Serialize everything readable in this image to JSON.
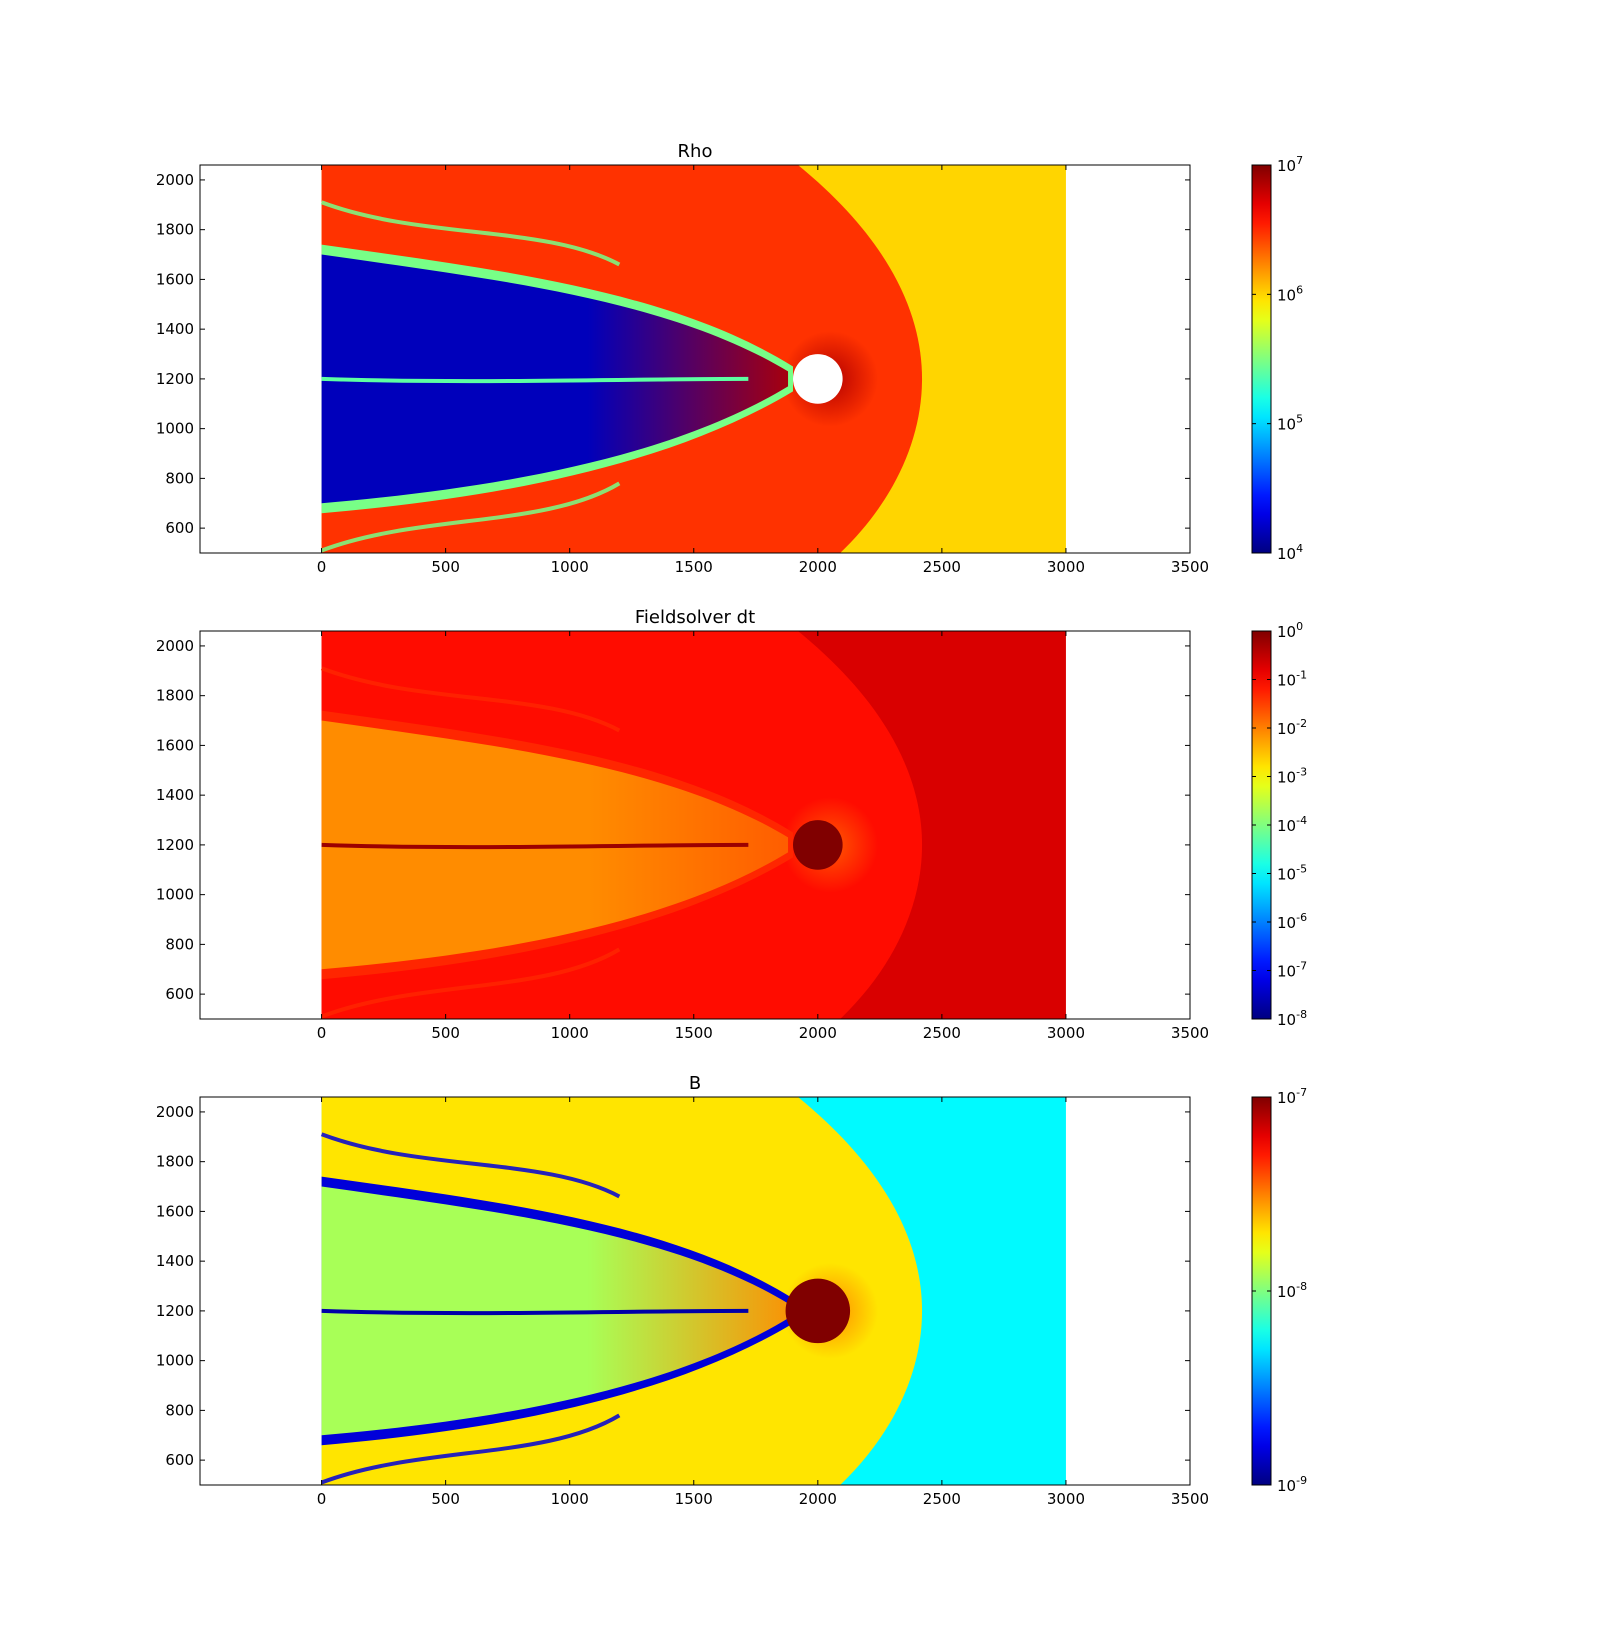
{
  "chart_data": [
    {
      "type": "heatmap",
      "title": "Rho",
      "xlabel": "",
      "ylabel": "",
      "xlim": [
        -490,
        3500
      ],
      "ylim": [
        500,
        2060
      ],
      "xticks": [
        "0",
        "500",
        "1000",
        "1500",
        "2000",
        "2500",
        "3000",
        "3500"
      ],
      "yticks": [
        "600",
        "800",
        "1000",
        "1200",
        "1400",
        "1600",
        "1800",
        "2000"
      ],
      "colorbar": {
        "scale": "log",
        "range": [
          10000,
          10000000
        ],
        "ticks": [
          {
            "base": "10",
            "exp": "4"
          },
          {
            "base": "10",
            "exp": "5"
          },
          {
            "base": "10",
            "exp": "6"
          },
          {
            "base": "10",
            "exp": "7"
          }
        ]
      },
      "data_extent": {
        "x": [
          0,
          3000
        ],
        "y": [
          500,
          2060
        ]
      },
      "obstacle": {
        "center": [
          2000,
          1200
        ],
        "radius": 100
      },
      "field": {
        "upstream": 1000000,
        "sheath": 3000000,
        "tail_lobe": 15000,
        "lobe_edge": 300000,
        "current_sheet": 250000,
        "dense_blob": 7000000,
        "obstacle_fill": "#ffffff"
      }
    },
    {
      "type": "heatmap",
      "title": "Fieldsolver dt",
      "xlabel": "",
      "ylabel": "",
      "xlim": [
        -490,
        3500
      ],
      "ylim": [
        500,
        2060
      ],
      "xticks": [
        "0",
        "500",
        "1000",
        "1500",
        "2000",
        "2500",
        "3000",
        "3500"
      ],
      "yticks": [
        "600",
        "800",
        "1000",
        "1200",
        "1400",
        "1600",
        "1800",
        "2000"
      ],
      "colorbar": {
        "scale": "log",
        "range": [
          1e-08,
          1
        ],
        "ticks": [
          {
            "base": "10",
            "exp": "-8"
          },
          {
            "base": "10",
            "exp": "-7"
          },
          {
            "base": "10",
            "exp": "-6"
          },
          {
            "base": "10",
            "exp": "-5"
          },
          {
            "base": "10",
            "exp": "-4"
          },
          {
            "base": "10",
            "exp": "-3"
          },
          {
            "base": "10",
            "exp": "-2"
          },
          {
            "base": "10",
            "exp": "-1"
          },
          {
            "base": "10",
            "exp": "0"
          }
        ]
      },
      "data_extent": {
        "x": [
          0,
          3000
        ],
        "y": [
          500,
          2060
        ]
      },
      "obstacle": {
        "center": [
          2000,
          1200
        ],
        "radius": 100
      },
      "field": {
        "upstream": 0.2,
        "sheath": 0.08,
        "tail_lobe": 0.008,
        "lobe_edge": 0.05,
        "current_sheet": 0.6,
        "dense_blob": 0.02,
        "obstacle_fill": "#800000"
      }
    },
    {
      "type": "heatmap",
      "title": "B",
      "xlabel": "",
      "ylabel": "",
      "xlim": [
        -490,
        3500
      ],
      "ylim": [
        500,
        2060
      ],
      "xticks": [
        "0",
        "500",
        "1000",
        "1500",
        "2000",
        "2500",
        "3000",
        "3500"
      ],
      "yticks": [
        "600",
        "800",
        "1000",
        "1200",
        "1400",
        "1600",
        "1800",
        "2000"
      ],
      "colorbar": {
        "scale": "log",
        "range": [
          1e-09,
          1e-07
        ],
        "ticks": [
          {
            "base": "10",
            "exp": "-9"
          },
          {
            "base": "10",
            "exp": "-8"
          },
          {
            "base": "10",
            "exp": "-7"
          }
        ]
      },
      "data_extent": {
        "x": [
          0,
          3000
        ],
        "y": [
          500,
          2060
        ]
      },
      "obstacle": {
        "center": [
          2000,
          1200
        ],
        "radius": 130
      },
      "field": {
        "upstream": 5.5e-09,
        "sheath": 2e-08,
        "tail_lobe": 1.2e-08,
        "lobe_edge": 1.5e-09,
        "current_sheet": 1.2e-09,
        "dense_blob": 3e-08,
        "obstacle_fill": "#800000"
      }
    }
  ]
}
